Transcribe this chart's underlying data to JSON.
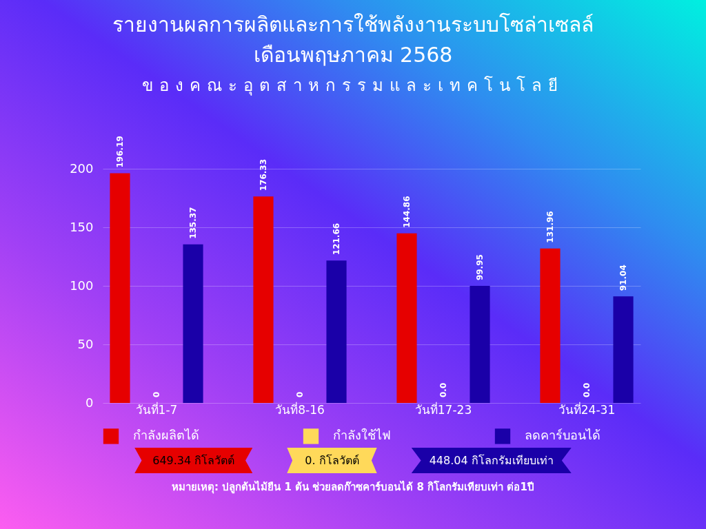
{
  "chart_data": {
    "type": "bar",
    "title": "รายงานผลการผลิตและการใช้พลังงานระบบโซล่าเซลล์เดือนพฤษภาคม 2568",
    "subtitle": "ของคณะอุตสาหกรรมและเทคโนโลยี",
    "categories": [
      "วันที่1-7",
      "วันที่8-16",
      "วันที่17-23",
      "วันที่24-31"
    ],
    "series": [
      {
        "name": "กำลังผลิตได้",
        "color": "#e60000",
        "values": [
          196.19,
          176.33,
          144.86,
          131.96
        ],
        "value_labels": [
          "196.19",
          "176.33",
          "144.86",
          "131.96"
        ]
      },
      {
        "name": "กำลังใช้ไฟ",
        "color": "#ffd95a",
        "values": [
          0,
          0,
          0,
          0
        ],
        "value_labels": [
          "0",
          "0",
          "0.0",
          "0.0"
        ]
      },
      {
        "name": "ลดคาร์บอนได้",
        "color": "#1a00a8",
        "values": [
          135.37,
          121.66,
          99.95,
          91.04
        ],
        "value_labels": [
          "135.37",
          "121.66",
          "99.95",
          "91.04"
        ]
      }
    ],
    "ylim": [
      0,
      200
    ],
    "yticks": [
      0,
      50,
      100,
      150,
      200
    ],
    "grid": "y",
    "legend": "bottom",
    "annotations": [
      "649.34 กิโลวัตต์",
      "0. กิโลวัตต์",
      "448.04 กิโลกรัมเทียบเท่า",
      "หมายเหตุ: ปลูกต้นไม้ยืน 1 ต้น ช่วยลดก๊าซคาร์บอนได้ 8 กิโลกรัมเทียบเท่า ต่อ1ปี"
    ]
  }
}
